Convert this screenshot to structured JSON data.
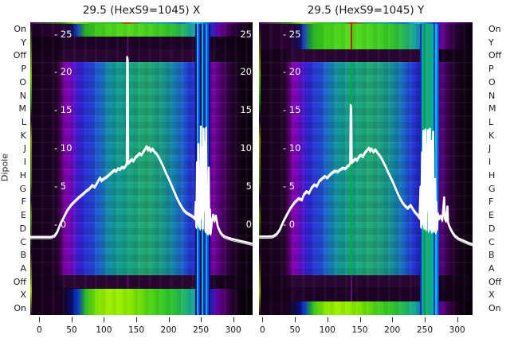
{
  "figure": {
    "y_axis_label": "Dipole",
    "row_labels": [
      "On",
      "Y",
      "Off",
      "P",
      "O",
      "N",
      "M",
      "L",
      "K",
      "J",
      "I",
      "H",
      "G",
      "F",
      "E",
      "D",
      "C",
      "B",
      "A",
      "Off",
      "X",
      "On"
    ],
    "x_tick_values": [
      0,
      50,
      100,
      150,
      200,
      250,
      300
    ],
    "overlay_scale_values": [
      25,
      20,
      15,
      10,
      5,
      0
    ],
    "background_color": "#ffffff",
    "curve_color": "#ffffff",
    "text_color": "#1a1a1a"
  },
  "colors": {
    "colormap": "dark-purple / violet / blue / teal / green / yellow-green (nipy-spectral-like)",
    "purple": "#8500b2",
    "blue": "#2446d8",
    "teal": "#17a488",
    "green": "#3ecd24",
    "yellow_green": "#9ff200",
    "dark_background": "#100014",
    "red_marker": "#cc1400",
    "green_marker": "#00b428"
  },
  "chart_data": [
    {
      "type": "heatmap",
      "title": "29.5 (HexS9=1045) X",
      "xlabel": "",
      "ylabel": "Dipole",
      "x_range": [
        -14,
        330
      ],
      "x_ticks": [
        0,
        50,
        100,
        150,
        200,
        250,
        300
      ],
      "row_categories": [
        "On",
        "Y",
        "Off",
        "P",
        "O",
        "N",
        "M",
        "L",
        "K",
        "J",
        "I",
        "H",
        "G",
        "F",
        "E",
        "D",
        "C",
        "B",
        "A",
        "Off",
        "X",
        "On"
      ],
      "active_green_rows_top": [
        "On"
      ],
      "active_green_rows_bottom": [
        "X",
        "On"
      ],
      "overlay_scale_ticks": [
        25,
        20,
        15,
        10,
        5,
        0
      ],
      "scale_labels_left": true,
      "scale_labels_right": true,
      "overlay_line": {
        "name": "signal",
        "points": [
          [
            -14,
            -1.6
          ],
          [
            10,
            -1.6
          ],
          [
            18,
            -1.6
          ],
          [
            24,
            -1.4
          ],
          [
            28,
            -0.9
          ],
          [
            33,
            0.2
          ],
          [
            38,
            1.0
          ],
          [
            44,
            2.0
          ],
          [
            50,
            2.7
          ],
          [
            56,
            3.2
          ],
          [
            62,
            3.7
          ],
          [
            68,
            4.1
          ],
          [
            73,
            4.5
          ],
          [
            78,
            4.8
          ],
          [
            82,
            5.2
          ],
          [
            86,
            5.0
          ],
          [
            90,
            5.6
          ],
          [
            94,
            6.2
          ],
          [
            96,
            5.8
          ],
          [
            100,
            6.1
          ],
          [
            104,
            6.3
          ],
          [
            108,
            6.6
          ],
          [
            112,
            6.9
          ],
          [
            116,
            7.2
          ],
          [
            119,
            7.1
          ],
          [
            122,
            7.4
          ],
          [
            125,
            7.3
          ],
          [
            128,
            7.6
          ],
          [
            131,
            7.5
          ],
          [
            134,
            7.8
          ],
          [
            135.3,
            8.0
          ],
          [
            136,
            22.0
          ],
          [
            136.8,
            21.6
          ],
          [
            137.6,
            8.1
          ],
          [
            140,
            8.3
          ],
          [
            143,
            8.6
          ],
          [
            146,
            8.4
          ],
          [
            149,
            8.9
          ],
          [
            152,
            9.1
          ],
          [
            155,
            9.4
          ],
          [
            158,
            9.2
          ],
          [
            161,
            9.6
          ],
          [
            164,
            10.0
          ],
          [
            166,
            10.3
          ],
          [
            168,
            9.8
          ],
          [
            170,
            10.15
          ],
          [
            172,
            9.7
          ],
          [
            175,
            10.0
          ],
          [
            178,
            9.6
          ],
          [
            181,
            9.4
          ],
          [
            184,
            9.0
          ],
          [
            187,
            8.5
          ],
          [
            190,
            8.0
          ],
          [
            193,
            7.4
          ],
          [
            196,
            6.8
          ],
          [
            200,
            6.1
          ],
          [
            204,
            5.3
          ],
          [
            208,
            4.5
          ],
          [
            212,
            3.7
          ],
          [
            216,
            3.0
          ],
          [
            220,
            2.4
          ],
          [
            224,
            1.9
          ],
          [
            228,
            1.6
          ],
          [
            232,
            1.4
          ],
          [
            236,
            1.2
          ],
          [
            239,
            1.0
          ],
          [
            241,
            0.8
          ],
          [
            242,
            3.0
          ],
          [
            243,
            -0.3
          ],
          [
            244,
            8.2
          ],
          [
            245,
            0.3
          ],
          [
            246,
            10.6
          ],
          [
            247,
            -0.2
          ],
          [
            248,
            7.0
          ],
          [
            249,
            -0.5
          ],
          [
            250,
            12.9
          ],
          [
            251,
            1.0
          ],
          [
            252,
            10.2
          ],
          [
            253,
            -0.5
          ],
          [
            254,
            12.6
          ],
          [
            255,
            2.0
          ],
          [
            256,
            10.8
          ],
          [
            257,
            -0.8
          ],
          [
            258,
            12.7
          ],
          [
            259,
            -1.0
          ],
          [
            260,
            4.2
          ],
          [
            261,
            -1.2
          ],
          [
            262,
            7.5
          ],
          [
            263,
            -1.0
          ],
          [
            264,
            2.0
          ],
          [
            265,
            -1.2
          ],
          [
            267,
            0.4
          ],
          [
            269,
            1.3
          ],
          [
            271,
            0.5
          ],
          [
            273,
            1.2
          ],
          [
            276,
            -0.2
          ],
          [
            279,
            -0.8
          ],
          [
            282,
            -1.2
          ],
          [
            286,
            -1.5
          ],
          [
            292,
            -1.7
          ],
          [
            300,
            -1.9
          ],
          [
            310,
            -2.1
          ],
          [
            320,
            -2.3
          ],
          [
            330,
            -2.5
          ]
        ]
      },
      "artifacts": {
        "stripes": [
          {
            "x": 241.5,
            "w": 2,
            "color": "#0a1678",
            "region": "full"
          },
          {
            "x": 244,
            "w": 2,
            "color": "#00b8d8",
            "region": "full"
          },
          {
            "x": 246.5,
            "w": 2,
            "color": "#1238e0",
            "region": "full"
          },
          {
            "x": 249,
            "w": 2,
            "color": "#061060",
            "region": "full"
          },
          {
            "x": 251,
            "w": 2,
            "color": "#00c0cc",
            "region": "full"
          },
          {
            "x": 253.5,
            "w": 3,
            "color": "#0a28b0",
            "region": "full"
          },
          {
            "x": 257,
            "w": 2,
            "color": "#00b0d0",
            "region": "full"
          },
          {
            "x": 259.5,
            "w": 2,
            "color": "#2244ee",
            "region": "full"
          },
          {
            "x": 262,
            "w": 2,
            "color": "#0a1678",
            "region": "full"
          }
        ],
        "lines": [
          {
            "x": 135,
            "w": 2,
            "color": "#4c0a58",
            "region": "top-dark"
          },
          {
            "x": 135,
            "w": 2,
            "color": "#4c0a58",
            "region": "bottom-dark"
          }
        ]
      }
    },
    {
      "type": "heatmap",
      "title": "29.5 (HexS9=1045) Y",
      "xlabel": "",
      "ylabel": "Dipole",
      "x_range": [
        -5,
        326
      ],
      "x_ticks": [
        0,
        50,
        100,
        150,
        200,
        250,
        300
      ],
      "row_categories": [
        "On",
        "Y",
        "Off",
        "P",
        "O",
        "N",
        "M",
        "L",
        "K",
        "J",
        "I",
        "H",
        "G",
        "F",
        "E",
        "D",
        "C",
        "B",
        "A",
        "Off",
        "X",
        "On"
      ],
      "active_green_rows_top": [
        "On",
        "Y"
      ],
      "active_green_rows_bottom": [
        "On"
      ],
      "overlay_scale_ticks": [
        25,
        20,
        15,
        10,
        5,
        0
      ],
      "scale_labels_left": true,
      "scale_labels_right": false,
      "overlay_line": {
        "name": "signal",
        "points": [
          [
            -5,
            -1.55
          ],
          [
            8,
            -1.55
          ],
          [
            16,
            -1.5
          ],
          [
            22,
            -1.2
          ],
          [
            27,
            -0.6
          ],
          [
            32,
            0.4
          ],
          [
            38,
            1.4
          ],
          [
            44,
            2.3
          ],
          [
            50,
            3.0
          ],
          [
            56,
            3.5
          ],
          [
            61,
            3.3
          ],
          [
            64,
            4.0
          ],
          [
            68,
            4.4
          ],
          [
            72,
            4.2
          ],
          [
            76,
            4.9
          ],
          [
            80,
            5.3
          ],
          [
            84,
            5.1
          ],
          [
            88,
            5.8
          ],
          [
            92,
            6.1
          ],
          [
            96,
            6.4
          ],
          [
            100,
            6.2
          ],
          [
            104,
            6.6
          ],
          [
            108,
            6.9
          ],
          [
            112,
            7.1
          ],
          [
            116,
            7.0
          ],
          [
            120,
            7.3
          ],
          [
            124,
            7.5
          ],
          [
            128,
            7.4
          ],
          [
            131,
            7.7
          ],
          [
            134,
            7.9
          ],
          [
            135.3,
            8.1
          ],
          [
            136,
            15.7
          ],
          [
            136.8,
            15.2
          ],
          [
            137.6,
            8.2
          ],
          [
            140,
            8.4
          ],
          [
            143,
            8.7
          ],
          [
            146,
            8.5
          ],
          [
            149,
            9.0
          ],
          [
            152,
            9.2
          ],
          [
            155,
            9.0
          ],
          [
            158,
            9.5
          ],
          [
            161,
            9.8
          ],
          [
            164,
            10.1
          ],
          [
            166,
            9.7
          ],
          [
            168,
            10.0
          ],
          [
            171,
            9.6
          ],
          [
            174,
            9.9
          ],
          [
            177,
            9.5
          ],
          [
            180,
            9.2
          ],
          [
            183,
            8.8
          ],
          [
            186,
            8.3
          ],
          [
            189,
            7.8
          ],
          [
            192,
            7.2
          ],
          [
            196,
            6.5
          ],
          [
            200,
            5.8
          ],
          [
            204,
            5.0
          ],
          [
            208,
            4.2
          ],
          [
            212,
            3.5
          ],
          [
            216,
            2.9
          ],
          [
            220,
            2.5
          ],
          [
            224,
            2.2
          ],
          [
            228,
            2.6
          ],
          [
            231,
            2.2
          ],
          [
            234,
            1.8
          ],
          [
            237,
            1.5
          ],
          [
            240,
            1.2
          ],
          [
            242,
            0.9
          ],
          [
            243.5,
            5.0
          ],
          [
            244.5,
            -0.3
          ],
          [
            246,
            9.5
          ],
          [
            247,
            0.2
          ],
          [
            248,
            12.3
          ],
          [
            249,
            -0.4
          ],
          [
            250,
            8.0
          ],
          [
            251,
            12.5
          ],
          [
            252,
            -0.6
          ],
          [
            253,
            10.5
          ],
          [
            254,
            2.0
          ],
          [
            255,
            12.4
          ],
          [
            256,
            -0.8
          ],
          [
            257,
            9.0
          ],
          [
            258,
            12.6
          ],
          [
            259,
            -0.5
          ],
          [
            260,
            11.0
          ],
          [
            261,
            -0.9
          ],
          [
            262,
            8.0
          ],
          [
            263,
            12.2
          ],
          [
            264,
            -0.8
          ],
          [
            266,
            6.0
          ],
          [
            267,
            -1.0
          ],
          [
            268,
            3.0
          ],
          [
            269,
            -0.6
          ],
          [
            270,
            1.5
          ],
          [
            272,
            0.8
          ],
          [
            274,
            1.2
          ],
          [
            277,
            0.6
          ],
          [
            280,
            3.6
          ],
          [
            281,
            0.8
          ],
          [
            283,
            0.5
          ],
          [
            285,
            2.4
          ],
          [
            286,
            0.3
          ],
          [
            288,
            -0.2
          ],
          [
            292,
            -0.9
          ],
          [
            296,
            -1.4
          ],
          [
            302,
            -1.8
          ],
          [
            310,
            -2.1
          ],
          [
            318,
            -2.4
          ],
          [
            326,
            -2.6
          ]
        ]
      },
      "artifacts": {
        "stripes": [
          {
            "x": 242.5,
            "w": 2,
            "color": "#0030c0",
            "region": "full"
          },
          {
            "x": 245,
            "w": 3,
            "color": "#12a488",
            "region": "full"
          },
          {
            "x": 248.5,
            "w": 2,
            "color": "#0a9c50",
            "region": "full"
          },
          {
            "x": 251,
            "w": 3,
            "color": "#18ac90",
            "region": "full"
          },
          {
            "x": 254.5,
            "w": 2,
            "color": "#10b460",
            "region": "full"
          },
          {
            "x": 257,
            "w": 3,
            "color": "#14a890",
            "region": "full"
          },
          {
            "x": 260.5,
            "w": 2,
            "color": "#0eb0a0",
            "region": "full"
          },
          {
            "x": 263,
            "w": 2,
            "color": "#0838c8",
            "region": "full"
          },
          {
            "x": 265.5,
            "w": 3,
            "color": "#00b4d4",
            "region": "full"
          },
          {
            "x": 269,
            "w": 2,
            "color": "#1240e0",
            "region": "full"
          }
        ],
        "lines": [
          {
            "x": 136,
            "w": 2,
            "color": "#cc1400",
            "region": "top-band"
          },
          {
            "x": 136,
            "w": 2,
            "color": "#00b428",
            "region": "main"
          },
          {
            "x": 136,
            "w": 2,
            "color": "#58126a",
            "region": "bottom-dark"
          }
        ]
      }
    }
  ]
}
